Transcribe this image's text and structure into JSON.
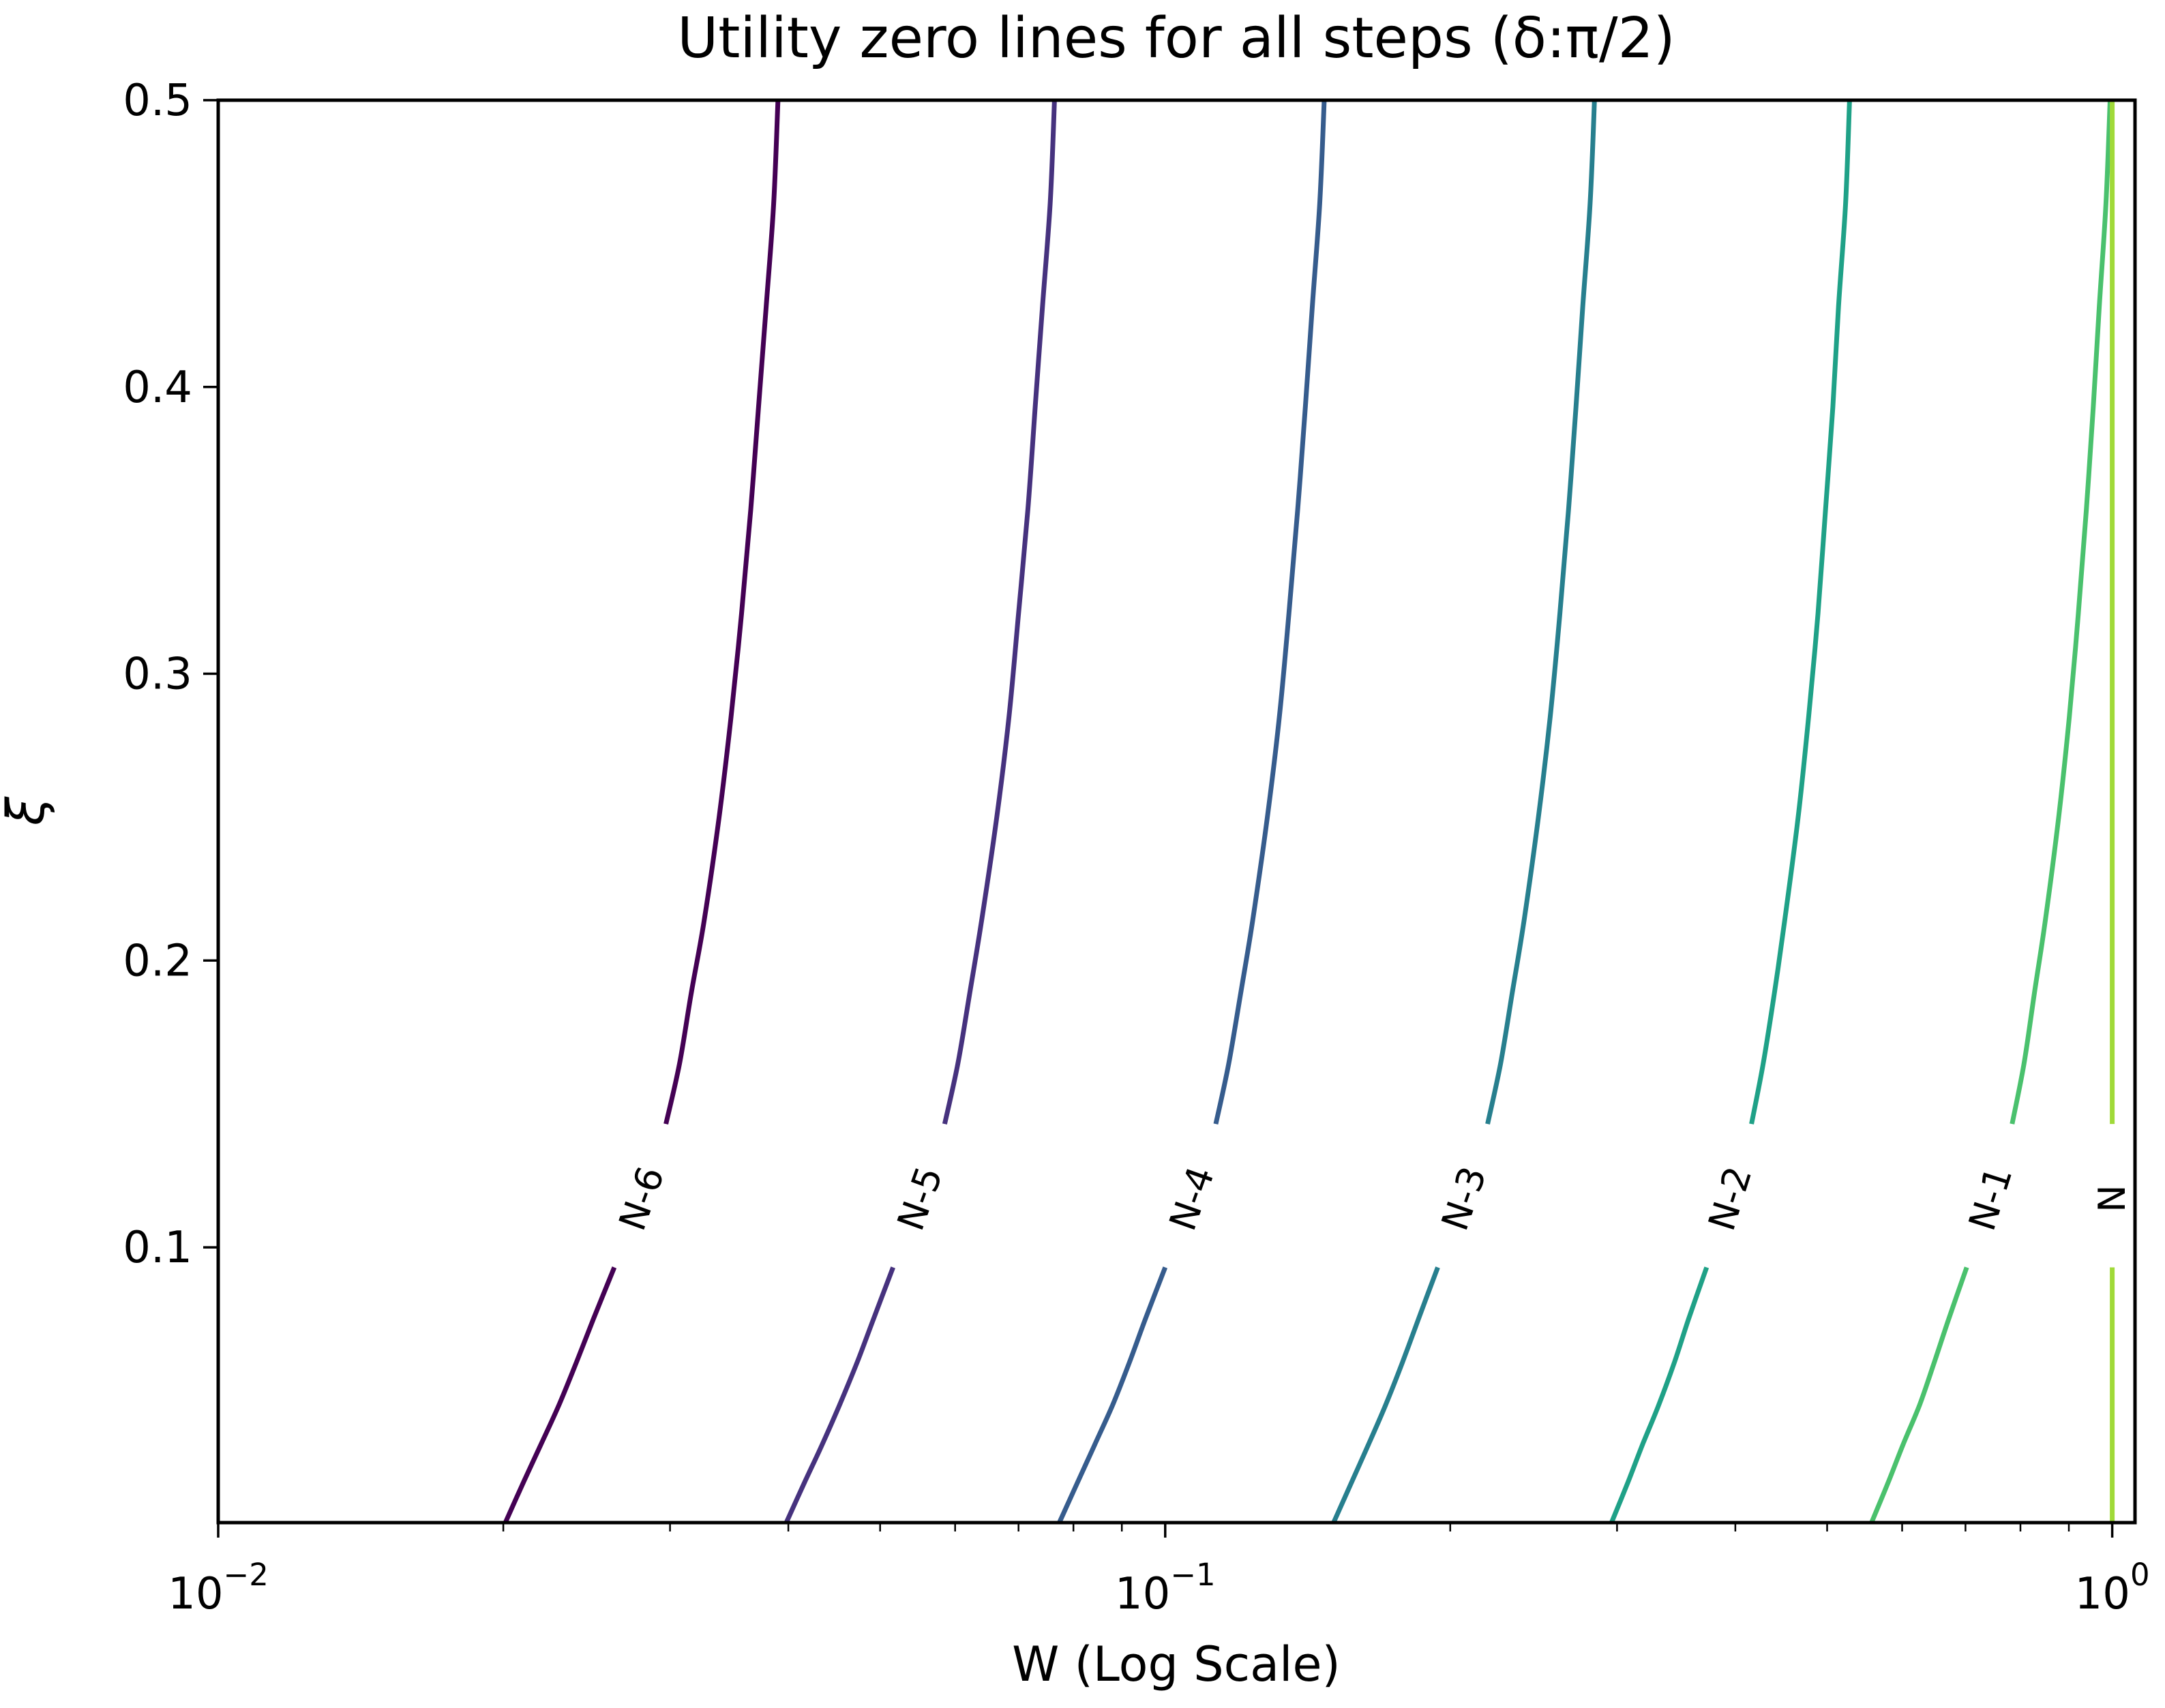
{
  "chart_data": {
    "type": "line",
    "title": "Utility zero lines for all steps (δ:π/2)",
    "xlabel": "W (Log Scale)",
    "ylabel": "ξ",
    "x_scale": "log",
    "y_scale": "linear",
    "xlim": [
      0.01,
      1.057
    ],
    "ylim": [
      0.004,
      0.5
    ],
    "grid": false,
    "legend": "none (inline contour labels)",
    "x_major_ticks": [
      {
        "value": 0.01,
        "base": "10",
        "exp": "−2"
      },
      {
        "value": 0.1,
        "base": "10",
        "exp": "−1"
      },
      {
        "value": 1.0,
        "base": "10",
        "exp": "0"
      }
    ],
    "x_minor_ticks": [
      0.02,
      0.03,
      0.04,
      0.05,
      0.06,
      0.07,
      0.08,
      0.09,
      0.2,
      0.3,
      0.4,
      0.5,
      0.6,
      0.7,
      0.8,
      0.9
    ],
    "y_ticks": [
      {
        "value": 0.1,
        "label": "0.1"
      },
      {
        "value": 0.2,
        "label": "0.2"
      },
      {
        "value": 0.3,
        "label": "0.3"
      },
      {
        "value": 0.4,
        "label": "0.4"
      },
      {
        "value": 0.5,
        "label": "0.5"
      }
    ],
    "xi": [
      0.5,
      0.464,
      0.428,
      0.393,
      0.357,
      0.321,
      0.285,
      0.25,
      0.214,
      0.189,
      0.164,
      0.143,
      0.117,
      0.093,
      0.075,
      0.06,
      0.045,
      0.031,
      0.018,
      0.004
    ],
    "label_point_index": 12,
    "label_gap_indices": [
      11,
      13
    ],
    "series": [
      {
        "name": "N-6",
        "color": "#440154",
        "w": [
          0.039,
          0.0386,
          0.0379,
          0.0372,
          0.0365,
          0.0357,
          0.0348,
          0.0338,
          0.0326,
          0.0316,
          0.0307,
          0.0297,
          0.028,
          0.0262,
          0.0249,
          0.0239,
          0.0229,
          0.0219,
          0.021,
          0.0201
        ]
      },
      {
        "name": "N-5",
        "color": "#46327e",
        "w": [
          0.0764,
          0.0756,
          0.0742,
          0.0729,
          0.0716,
          0.07,
          0.0684,
          0.0664,
          0.064,
          0.0622,
          0.0604,
          0.0585,
          0.0551,
          0.0516,
          0.0492,
          0.0473,
          0.0453,
          0.0434,
          0.0416,
          0.0398
        ]
      },
      {
        "name": "N-4",
        "color": "#365c8d",
        "w": [
          0.1472,
          0.1456,
          0.143,
          0.1406,
          0.138,
          0.1351,
          0.132,
          0.1282,
          0.1237,
          0.1202,
          0.1167,
          0.1131,
          0.1067,
          0.1,
          0.0953,
          0.0917,
          0.088,
          0.0842,
          0.0808,
          0.0773
        ]
      },
      {
        "name": "N-3",
        "color": "#277f8e",
        "w": [
          0.284,
          0.281,
          0.276,
          0.2715,
          0.2666,
          0.2611,
          0.255,
          0.2478,
          0.2393,
          0.2326,
          0.226,
          0.219,
          0.2068,
          0.194,
          0.1851,
          0.1781,
          0.1709,
          0.1638,
          0.1573,
          0.1506
        ]
      },
      {
        "name": "N-2",
        "color": "#1fa187",
        "w": [
          0.528,
          0.523,
          0.514,
          0.507,
          0.498,
          0.489,
          0.478,
          0.466,
          0.451,
          0.44,
          0.428,
          0.416,
          0.395,
          0.373,
          0.357,
          0.345,
          0.332,
          0.319,
          0.308,
          0.296
        ]
      },
      {
        "name": "N-1",
        "color": "#4ac16d",
        "w": [
          0.995,
          0.985,
          0.969,
          0.955,
          0.939,
          0.921,
          0.901,
          0.878,
          0.85,
          0.828,
          0.807,
          0.784,
          0.744,
          0.702,
          0.672,
          0.649,
          0.626,
          0.601,
          0.58,
          0.557
        ]
      },
      {
        "name": "N",
        "color": "#a0da39",
        "w": [
          1.0,
          1.0,
          1.0,
          1.0,
          1.0,
          1.0,
          1.0,
          1.0,
          1.0,
          1.0,
          1.0,
          1.0,
          1.0,
          1.0,
          1.0,
          1.0,
          1.0,
          1.0,
          1.0,
          1.0
        ]
      }
    ],
    "frame_color": "#000000"
  }
}
